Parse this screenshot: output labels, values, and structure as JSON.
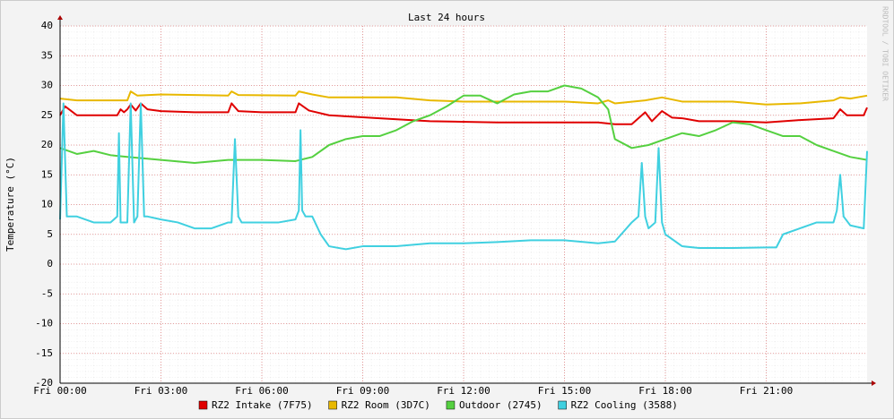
{
  "chart_data": {
    "type": "line",
    "title": "Last 24 hours",
    "y_label": "Temperature (°C)",
    "watermark": "RRDTOOL / TOBI OETIKER",
    "xlim": [
      0,
      24
    ],
    "xticks": [
      {
        "value": 0,
        "label": "Fri 00:00"
      },
      {
        "value": 3,
        "label": "Fri 03:00"
      },
      {
        "value": 6,
        "label": "Fri 06:00"
      },
      {
        "value": 9,
        "label": "Fri 09:00"
      },
      {
        "value": 12,
        "label": "Fri 12:00"
      },
      {
        "value": 15,
        "label": "Fri 15:00"
      },
      {
        "value": 18,
        "label": "Fri 18:00"
      },
      {
        "value": 21,
        "label": "Fri 21:00"
      }
    ],
    "ylim": [
      -20,
      40
    ],
    "yticks": [
      -20,
      -15,
      -10,
      -5,
      0,
      5,
      10,
      15,
      20,
      25,
      30,
      35,
      40
    ],
    "grid": true,
    "series": [
      {
        "name": "RZ2 Intake (7F75)",
        "color": "#e00000",
        "x": [
          0,
          0.15,
          0.5,
          1,
          1.7,
          1.8,
          1.9,
          2.0,
          2.1,
          2.25,
          2.4,
          2.6,
          3,
          4,
          5,
          5.1,
          5.3,
          6,
          7,
          7.1,
          7.4,
          8,
          9.5,
          11,
          13,
          16,
          16.5,
          17,
          17.4,
          17.6,
          17.9,
          18.2,
          18.5,
          19,
          20,
          21,
          22,
          23,
          23.2,
          23.4,
          23.9,
          24
        ],
        "values": [
          25,
          26.5,
          25,
          25,
          25,
          26,
          25.5,
          26,
          26.8,
          25.8,
          27,
          26,
          25.7,
          25.5,
          25.5,
          27,
          25.7,
          25.5,
          25.5,
          27,
          25.8,
          25,
          24.5,
          24,
          23.8,
          23.8,
          23.5,
          23.5,
          25.5,
          24,
          25.7,
          24.6,
          24.5,
          24,
          24,
          23.8,
          24.2,
          24.5,
          26,
          25,
          25,
          26.3
        ]
      },
      {
        "name": "RZ2 Room (3D7C)",
        "color": "#e8b800",
        "x": [
          0,
          0.5,
          1,
          2,
          2.1,
          2.3,
          3,
          5,
          5.1,
          5.3,
          7,
          7.1,
          7.5,
          8,
          10,
          11,
          12,
          15,
          16,
          16.3,
          16.5,
          17.4,
          17.9,
          18.5,
          20,
          21,
          22,
          23,
          23.2,
          23.5,
          24
        ],
        "values": [
          27.8,
          27.5,
          27.5,
          27.5,
          29,
          28.3,
          28.5,
          28.3,
          29,
          28.4,
          28.3,
          29,
          28.5,
          28,
          28,
          27.5,
          27.3,
          27.3,
          27,
          27.5,
          27,
          27.5,
          28,
          27.3,
          27.3,
          26.8,
          27,
          27.5,
          28,
          27.8,
          28.3
        ]
      },
      {
        "name": "Outdoor (2745)",
        "color": "#55d040",
        "x": [
          0,
          0.5,
          1,
          1.5,
          2,
          3,
          4,
          5,
          6,
          7,
          7.5,
          8,
          8.5,
          9,
          9.5,
          10,
          10.5,
          11,
          11.5,
          12,
          12.5,
          13,
          13.5,
          14,
          14.5,
          15,
          15.5,
          16,
          16.3,
          16.5,
          17,
          17.5,
          18,
          18.5,
          19,
          19.5,
          20,
          20.5,
          21,
          21.5,
          22,
          22.5,
          23,
          23.5,
          24
        ],
        "values": [
          19.5,
          18.5,
          19,
          18.3,
          18,
          17.5,
          17,
          17.5,
          17.5,
          17.3,
          18,
          20,
          21,
          21.5,
          21.5,
          22.5,
          24,
          25,
          26.5,
          28.3,
          28.3,
          27,
          28.5,
          29,
          29,
          30,
          29.5,
          28,
          26,
          21,
          19.5,
          20,
          21,
          22,
          21.5,
          22.5,
          23.8,
          23.5,
          22.5,
          21.5,
          21.5,
          20,
          19,
          18,
          17.5
        ]
      },
      {
        "name": "RZ2 Cooling (3588)",
        "color": "#40d0e0",
        "x": [
          0,
          0.1,
          0.2,
          0.5,
          1,
          1.5,
          1.7,
          1.75,
          1.8,
          2,
          2.1,
          2.2,
          2.3,
          2.4,
          2.5,
          2.6,
          3,
          3.5,
          4,
          4.5,
          5,
          5.1,
          5.2,
          5.3,
          5.4,
          6,
          6.5,
          7,
          7.1,
          7.15,
          7.2,
          7.3,
          7.5,
          7.75,
          8,
          8.5,
          9,
          10,
          11,
          12,
          13,
          14,
          15,
          16,
          16.5,
          17,
          17.2,
          17.3,
          17.4,
          17.5,
          17.7,
          17.8,
          17.9,
          18,
          18.5,
          19,
          20,
          21,
          21.3,
          21.5,
          22,
          22.5,
          23,
          23.1,
          23.2,
          23.3,
          23.5,
          23.9,
          24
        ],
        "values": [
          7.5,
          27,
          8,
          8,
          7,
          7,
          8,
          22,
          7,
          7,
          27,
          7,
          8,
          27,
          8,
          8,
          7.5,
          7,
          6,
          6,
          7,
          7,
          21,
          8,
          7,
          7,
          7,
          7.5,
          9,
          22.5,
          9,
          8,
          8,
          5,
          3,
          2.5,
          3,
          3,
          3.5,
          3.5,
          3.7,
          4,
          4,
          3.5,
          3.8,
          7,
          8,
          17,
          8,
          6,
          7,
          19.5,
          7,
          5,
          3,
          2.7,
          2.7,
          2.8,
          2.8,
          5,
          6,
          7,
          7,
          9,
          15,
          8,
          6.5,
          6,
          19
        ]
      }
    ]
  }
}
